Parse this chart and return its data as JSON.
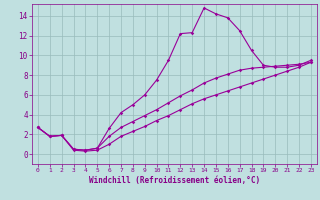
{
  "background_color": "#c0e0e0",
  "line_color": "#990099",
  "grid_color": "#99bbbb",
  "xlabel": "Windchill (Refroidissement éolien,°C)",
  "xlabel_color": "#880088",
  "tick_color": "#880088",
  "xlim": [
    -0.5,
    23.5
  ],
  "ylim": [
    -1.0,
    15.2
  ],
  "xticks": [
    0,
    1,
    2,
    3,
    4,
    5,
    6,
    7,
    8,
    9,
    10,
    11,
    12,
    13,
    14,
    15,
    16,
    17,
    18,
    19,
    20,
    21,
    22,
    23
  ],
  "yticks": [
    0,
    2,
    4,
    6,
    8,
    10,
    12,
    14
  ],
  "line1_x": [
    0,
    1,
    2,
    3,
    4,
    5,
    6,
    7,
    8,
    9,
    10,
    11,
    12,
    13,
    14,
    15,
    16,
    17,
    18,
    19,
    20,
    21,
    22,
    23
  ],
  "line1_y": [
    2.7,
    1.8,
    1.9,
    0.4,
    0.3,
    0.4,
    1.0,
    1.8,
    2.3,
    2.8,
    3.4,
    3.9,
    4.5,
    5.1,
    5.6,
    6.0,
    6.4,
    6.8,
    7.2,
    7.6,
    8.0,
    8.4,
    8.8,
    9.3
  ],
  "line2_x": [
    0,
    1,
    2,
    3,
    4,
    5,
    6,
    7,
    8,
    9,
    10,
    11,
    12,
    13,
    14,
    15,
    16,
    17,
    18,
    19,
    20,
    21,
    22,
    23
  ],
  "line2_y": [
    2.7,
    1.8,
    1.9,
    0.5,
    0.4,
    0.6,
    2.6,
    4.2,
    5.0,
    6.0,
    7.5,
    9.5,
    12.2,
    12.3,
    14.8,
    14.2,
    13.8,
    12.5,
    10.5,
    9.0,
    8.8,
    8.8,
    9.0,
    9.5
  ],
  "line3_x": [
    0,
    1,
    2,
    3,
    4,
    5,
    6,
    7,
    8,
    9,
    10,
    11,
    12,
    13,
    14,
    15,
    16,
    17,
    18,
    19,
    20,
    21,
    22,
    23
  ],
  "line3_y": [
    2.7,
    1.8,
    1.9,
    0.5,
    0.4,
    0.6,
    1.8,
    2.7,
    3.3,
    3.9,
    4.5,
    5.2,
    5.9,
    6.5,
    7.2,
    7.7,
    8.1,
    8.5,
    8.7,
    8.8,
    8.9,
    9.0,
    9.1,
    9.3
  ]
}
